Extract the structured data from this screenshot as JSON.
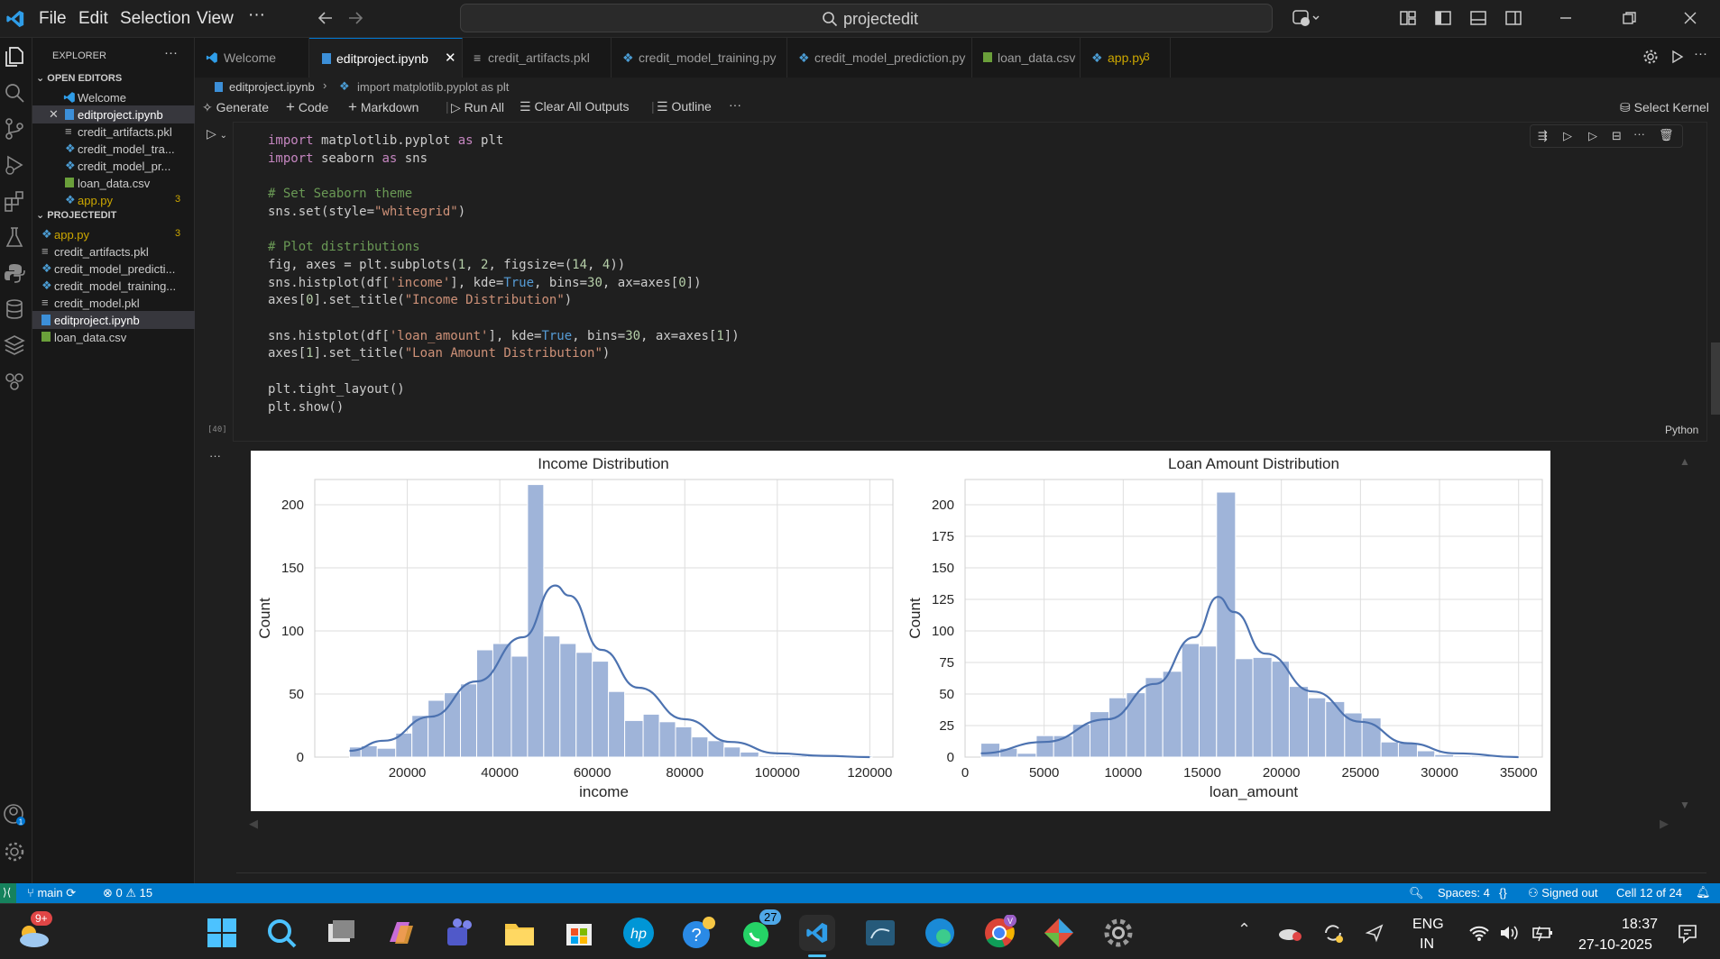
{
  "menu": {
    "file": "File",
    "edit": "Edit",
    "selection": "Selection",
    "view": "View",
    "more": "···"
  },
  "search": {
    "text": "projectedit"
  },
  "explorer": {
    "title": "EXPLORER",
    "open_editors": "OPEN EDITORS",
    "open": [
      "Welcome",
      "editproject.ipynb",
      "credit_artifacts.pkl",
      "credit_model_tra...",
      "credit_model_pr...",
      "loan_data.csv",
      "app.py"
    ],
    "app_badge": "3",
    "project": "PROJECTEDIT",
    "files": [
      "app.py",
      "credit_artifacts.pkl",
      "credit_model_predicti...",
      "credit_model_training...",
      "credit_model.pkl",
      "editproject.ipynb",
      "loan_data.csv"
    ]
  },
  "tabs": [
    "Welcome",
    "editproject.ipynb",
    "credit_artifacts.pkl",
    "credit_model_training.py",
    "credit_model_prediction.py",
    "loan_data.csv",
    "app.py"
  ],
  "tab_badge": "3",
  "breadcrumb": {
    "file": "editproject.ipynb",
    "symbol": "import matplotlib.pyplot as plt"
  },
  "toolbar": {
    "generate": "Generate",
    "code": "Code",
    "markdown": "Markdown",
    "run_all": "Run All",
    "clear": "Clear All Outputs",
    "outline": "Outline",
    "more": "···",
    "kernel": "Select Kernel"
  },
  "code_lines": [
    "import matplotlib.pyplot as plt",
    "import seaborn as sns",
    "",
    "# Set Seaborn theme",
    "sns.set(style=\"whitegrid\")",
    "",
    "# Plot distributions",
    "fig, axes = plt.subplots(1, 2, figsize=(14, 4))",
    "sns.histplot(df['income'], kde=True, bins=30, ax=axes[0])",
    "axes[0].set_title(\"Income Distribution\")",
    "",
    "sns.histplot(df['loan_amount'], kde=True, bins=30, ax=axes[1])",
    "axes[1].set_title(\"Loan Amount Distribution\")",
    "",
    "plt.tight_layout()",
    "plt.show()"
  ],
  "cell": {
    "exec_count": "[40]",
    "language": "Python",
    "out_more": "···"
  },
  "status": {
    "branch": "main",
    "errors": "0",
    "warnings": "15",
    "spaces": "Spaces: 4",
    "braces": "{}",
    "signed": "Signed out",
    "cell": "Cell 12 of 24"
  },
  "taskbar": {
    "weather_badge": "9+",
    "whatsapp_badge": "27",
    "lang1": "ENG",
    "lang2": "IN",
    "time": "18:37",
    "date": "27-10-2025"
  },
  "colors": {
    "accent": "#007acc",
    "bar": "#9fb4d9",
    "kde": "#4c72b0"
  },
  "chart_data": [
    {
      "type": "bar",
      "title": "Income Distribution",
      "xlabel": "income",
      "ylabel": "Count",
      "xlim": [
        0,
        125000
      ],
      "ylim": [
        0,
        220
      ],
      "xticks": [
        "20000",
        "40000",
        "60000",
        "80000",
        "100000",
        "120000"
      ],
      "yticks": [
        "0",
        "50",
        "100",
        "150",
        "200"
      ],
      "bins": [
        [
          7500,
          10000
        ],
        [
          10000,
          13500
        ],
        [
          13500,
          17500
        ],
        [
          17500,
          21000
        ],
        [
          21000,
          24500
        ],
        [
          24500,
          28000
        ],
        [
          28000,
          31500
        ],
        [
          31500,
          35000
        ],
        [
          35000,
          38500
        ],
        [
          38500,
          42500
        ],
        [
          42500,
          46000
        ],
        [
          46000,
          49500
        ],
        [
          49500,
          53000
        ],
        [
          53000,
          56500
        ],
        [
          56500,
          60000
        ],
        [
          60000,
          63500
        ],
        [
          63500,
          67000
        ],
        [
          67000,
          71000
        ],
        [
          71000,
          74500
        ],
        [
          74500,
          78000
        ],
        [
          78000,
          81500
        ],
        [
          81500,
          85000
        ],
        [
          85000,
          88500
        ],
        [
          88500,
          92000
        ],
        [
          92000,
          96000
        ],
        [
          96000,
          99500
        ],
        [
          99500,
          103000
        ],
        [
          103000,
          106500
        ],
        [
          106500,
          110000
        ],
        [
          110000,
          120500
        ]
      ],
      "values": [
        8,
        9,
        7,
        19,
        33,
        45,
        51,
        58,
        85,
        90,
        80,
        216,
        96,
        90,
        83,
        76,
        52,
        29,
        34,
        28,
        24,
        16,
        13,
        8,
        4,
        1,
        1,
        1,
        1,
        1
      ],
      "kde": [
        [
          7500,
          5
        ],
        [
          15000,
          13
        ],
        [
          25000,
          32
        ],
        [
          35000,
          60
        ],
        [
          45000,
          95
        ],
        [
          52000,
          136
        ],
        [
          55000,
          128
        ],
        [
          62000,
          85
        ],
        [
          70000,
          55
        ],
        [
          80000,
          30
        ],
        [
          90000,
          12
        ],
        [
          100000,
          3
        ],
        [
          110000,
          1
        ],
        [
          120000,
          0
        ]
      ]
    },
    {
      "type": "bar",
      "title": "Loan Amount Distribution",
      "xlabel": "loan_amount",
      "ylabel": "Count",
      "xlim": [
        0,
        36500
      ],
      "ylim": [
        0,
        220
      ],
      "xticks": [
        "0",
        "5000",
        "10000",
        "15000",
        "20000",
        "25000",
        "30000",
        "35000"
      ],
      "yticks": [
        "0",
        "25",
        "50",
        "75",
        "100",
        "125",
        "150",
        "175",
        "200"
      ],
      "bins": [
        [
          1000,
          2200
        ],
        [
          2200,
          3300
        ],
        [
          3300,
          4500
        ],
        [
          4500,
          5600
        ],
        [
          5600,
          6800
        ],
        [
          6800,
          7900
        ],
        [
          7900,
          9100
        ],
        [
          9100,
          10200
        ],
        [
          10200,
          11400
        ],
        [
          11400,
          12500
        ],
        [
          12500,
          13700
        ],
        [
          13700,
          14800
        ],
        [
          14800,
          15900
        ],
        [
          15900,
          17100
        ],
        [
          17100,
          18200
        ],
        [
          18200,
          19400
        ],
        [
          19400,
          20500
        ],
        [
          20500,
          21700
        ],
        [
          21700,
          22800
        ],
        [
          22800,
          24000
        ],
        [
          24000,
          25100
        ],
        [
          25100,
          26300
        ],
        [
          26300,
          27400
        ],
        [
          27400,
          28600
        ],
        [
          28600,
          29700
        ],
        [
          29700,
          30900
        ],
        [
          30900,
          32000
        ],
        [
          32000,
          35000
        ]
      ],
      "values": [
        11,
        7,
        3,
        17,
        17,
        26,
        36,
        47,
        51,
        63,
        68,
        90,
        88,
        210,
        78,
        79,
        76,
        56,
        47,
        44,
        35,
        31,
        12,
        11,
        5,
        2,
        1,
        1
      ],
      "kde": [
        [
          1000,
          3
        ],
        [
          5000,
          12
        ],
        [
          9000,
          30
        ],
        [
          12000,
          58
        ],
        [
          14500,
          95
        ],
        [
          16000,
          127
        ],
        [
          17000,
          115
        ],
        [
          19000,
          82
        ],
        [
          22000,
          52
        ],
        [
          25000,
          28
        ],
        [
          28000,
          11
        ],
        [
          31000,
          3
        ],
        [
          35000,
          0
        ]
      ]
    }
  ]
}
